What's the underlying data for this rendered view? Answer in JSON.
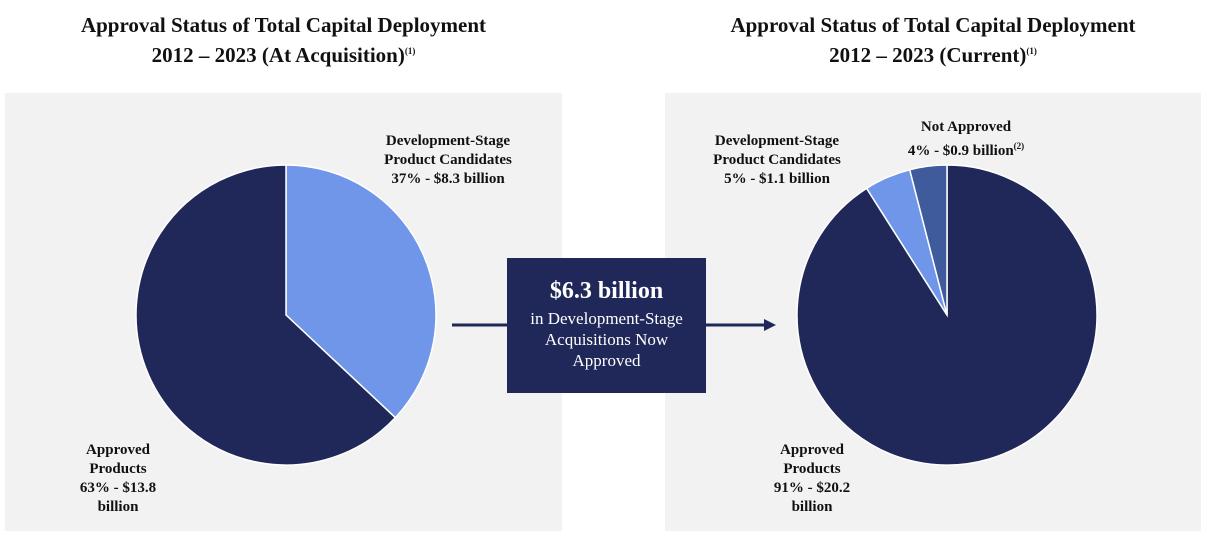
{
  "chart_data": [
    {
      "type": "pie",
      "title": "Approval Status of Total Capital Deployment",
      "subtitle": "2012 – 2023 (At Acquisition)",
      "title_note": "(1)",
      "categories": [
        "Development-Stage Product Candidates",
        "Approved Products"
      ],
      "values": [
        37,
        63
      ],
      "value_labels": [
        "37% - $8.3 billion",
        "63% - $13.8 billion"
      ],
      "footnotes": [
        null,
        null
      ],
      "colors": [
        "#6f96e8",
        "#1f2859"
      ]
    },
    {
      "type": "pie",
      "title": "Approval Status of Total Capital Deployment",
      "subtitle": "2012 – 2023 (Current)",
      "title_note": "(1)",
      "categories": [
        "Approved Products",
        "Development-Stage Product Candidates",
        "Not Approved"
      ],
      "values": [
        91,
        5,
        4
      ],
      "value_labels": [
        "91% - $20.2 billion",
        "5% - $1.1 billion",
        "4% - $0.9 billion"
      ],
      "footnotes": [
        null,
        null,
        "(2)"
      ],
      "colors": [
        "#1f2859",
        "#6f96e8",
        "#3f5b9c"
      ]
    }
  ],
  "annotation": {
    "headline": "$6.3 billion",
    "text": "in Development-Stage Acquisitions Now Approved"
  }
}
